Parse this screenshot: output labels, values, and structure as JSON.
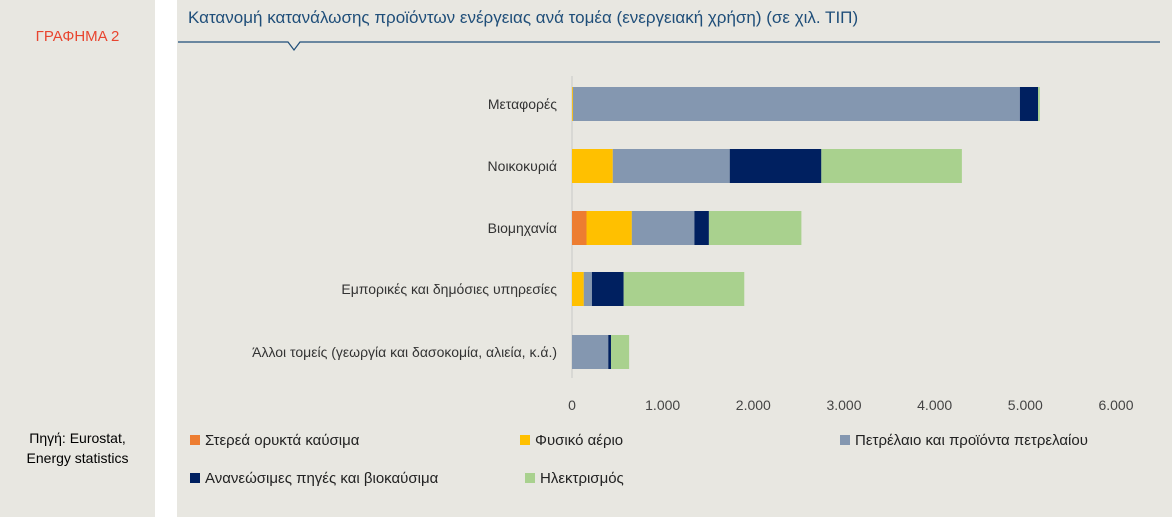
{
  "figure_label": "ΓΡΑΦΗΜΑ 2",
  "source": {
    "line1": "Πηγή: Eurostat,",
    "line2": "Energy statistics"
  },
  "chart_data": {
    "type": "bar",
    "orientation": "horizontal",
    "stacked": true,
    "title": "Κατανομή κατανάλωσης προϊόντων ενέργειας ανά τομέα (ενεργειακή χρήση) (σε χιλ. ΤΙΠ)",
    "categories": [
      "Μεταφορές",
      "Νοικοκυριά",
      "Βιομηχανία",
      "Εμπορικές και δημόσιες υπηρεσίες",
      "Άλλοι τομείς (γεωργία και δασοκομία, αλιεία, κ.ά.)"
    ],
    "series": [
      {
        "name": "Στερεά ορυκτά καύσιμα",
        "color": "#ed7d31",
        "values": [
          0,
          0,
          160,
          0,
          0
        ]
      },
      {
        "name": "Φυσικό αέριο",
        "color": "#ffc000",
        "values": [
          10,
          450,
          500,
          130,
          0
        ]
      },
      {
        "name": "Πετρέλαιο και προϊόντα πετρελαίου",
        "color": "#8497b0",
        "values": [
          4930,
          1290,
          690,
          90,
          400
        ]
      },
      {
        "name": "Ανανεώσιμες πηγές και βιοκαύσιμα",
        "color": "#002060",
        "values": [
          200,
          1010,
          160,
          350,
          30
        ]
      },
      {
        "name": "Ηλεκτρισμός",
        "color": "#a9d18e",
        "values": [
          20,
          1550,
          1020,
          1330,
          200
        ]
      }
    ],
    "xlim": [
      0,
      6000
    ],
    "xticks": [
      0,
      1000,
      2000,
      3000,
      4000,
      5000,
      6000
    ],
    "xtick_labels": [
      "0",
      "1.000",
      "2.000",
      "3.000",
      "4.000",
      "5.000",
      "6.000"
    ],
    "grid": false,
    "legend_position": "bottom"
  }
}
